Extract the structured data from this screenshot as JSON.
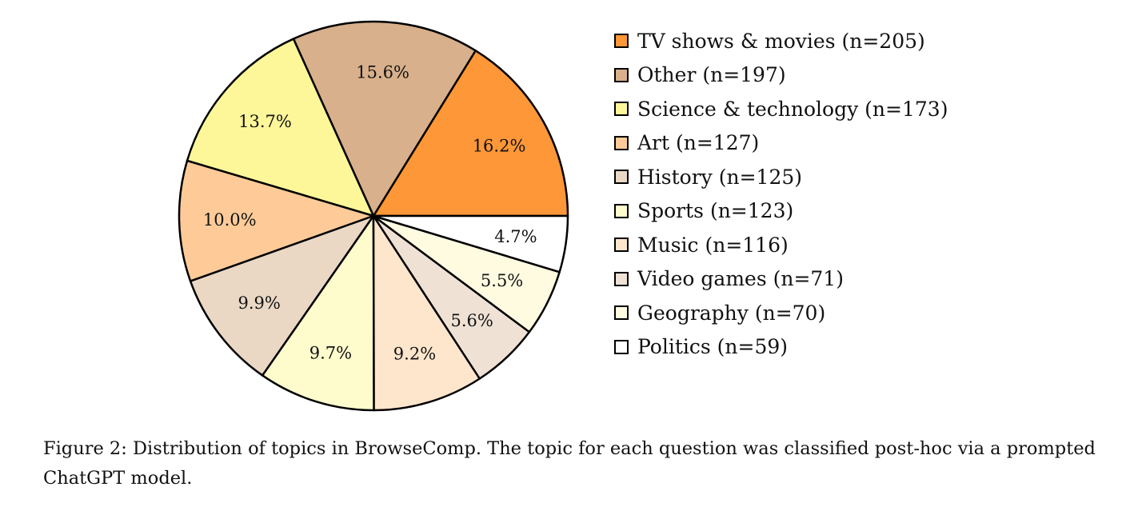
{
  "chart_data": {
    "type": "pie",
    "categories": [
      "TV shows & movies (n=205)",
      "Other (n=197)",
      "Science & technology (n=173)",
      "Art (n=127)",
      "History (n=125)",
      "Sports (n=123)",
      "Music (n=116)",
      "Video games (n=71)",
      "Geography (n=70)",
      "Politics (n=59)"
    ],
    "values": [
      205,
      197,
      173,
      127,
      125,
      123,
      116,
      71,
      70,
      59
    ],
    "percent_labels": [
      "16.2%",
      "15.6%",
      "13.7%",
      "10.0%",
      "9.9%",
      "9.7%",
      "9.2%",
      "5.6%",
      "5.5%",
      "4.7%"
    ],
    "colors": [
      "#fd9737",
      "#d8b08c",
      "#fef79a",
      "#fecb98",
      "#ead8c5",
      "#fefbcc",
      "#fee6cc",
      "#efe2d5",
      "#fefbe1",
      "#ffffff"
    ],
    "start_angle_deg": 0,
    "direction": "counterclockwise",
    "legend_position": "right",
    "title": ""
  },
  "caption": "Figure 2: Distribution of topics in BrowseComp. The topic for each question was classified post-hoc via a prompted ChatGPT model."
}
